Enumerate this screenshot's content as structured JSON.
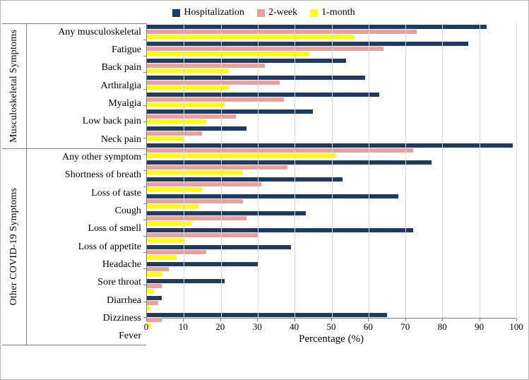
{
  "chart_data": {
    "type": "bar",
    "orientation": "horizontal",
    "title": "",
    "xlabel": "Percentage (%)",
    "ylabel": "",
    "xlim": [
      0,
      100
    ],
    "xticks": [
      0,
      10,
      20,
      30,
      40,
      50,
      60,
      70,
      80,
      90,
      100
    ],
    "grid": true,
    "legend_position": "top",
    "axis_color": "#7F7F7F",
    "gridline_color": "#D9D9D9",
    "groups": [
      {
        "label": "Musculoskeletal Symptoms",
        "start": 0,
        "count": 7
      },
      {
        "label": "Other COVID-19 Symptoms",
        "start": 7,
        "count": 11
      }
    ],
    "categories": [
      "Any musculoskeletal",
      "Fatigue",
      "Back pain",
      "Arthralgia",
      "Myalgia",
      "Low back pain",
      "Neck pain",
      "Any other symptom",
      "Shortness of breath",
      "Loss of taste",
      "Cough",
      "Loss of smell",
      "Loss of appetite",
      "Headache",
      "Sore throat",
      "Diarrhea",
      "Dizziness",
      "Fever"
    ],
    "series": [
      {
        "name": "Hospitalization",
        "color": "#1F3B63",
        "values": [
          92,
          87,
          54,
          59,
          63,
          45,
          27,
          99,
          77,
          53,
          68,
          43,
          72,
          39,
          30,
          21,
          4,
          65
        ]
      },
      {
        "name": "2-week",
        "color": "#E8A09A",
        "values": [
          73,
          64,
          32,
          36,
          37,
          24,
          15,
          72,
          38,
          31,
          26,
          27,
          30,
          16,
          6,
          4,
          3,
          4
        ]
      },
      {
        "name": "1-month",
        "color": "#FFFF00",
        "values": [
          56,
          44,
          22,
          22,
          21,
          16,
          10,
          51,
          26,
          15,
          14,
          12,
          10,
          8,
          4,
          2,
          1,
          1
        ]
      }
    ]
  }
}
